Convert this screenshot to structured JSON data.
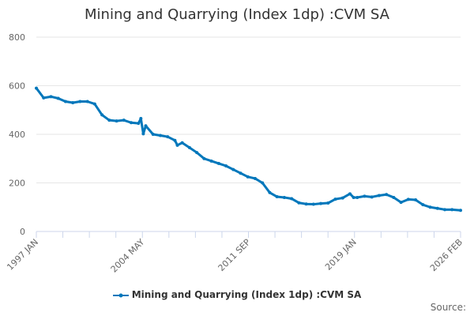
{
  "chart_data": {
    "type": "line",
    "title": "Mining and Quarrying (Index 1dp) :CVM SA",
    "xlabel": "",
    "ylabel": "",
    "ylim": [
      0,
      800
    ],
    "yticks": [
      0,
      200,
      400,
      600,
      800
    ],
    "xticks": [
      "1997 JAN",
      "2004 MAY",
      "2011 SEP",
      "2019 JAN",
      "2026 FEB"
    ],
    "xlim": [
      "1997-01",
      "2026-02"
    ],
    "grid": true,
    "legend_position": "bottom",
    "color": "#0077bb",
    "series": [
      {
        "name": "Mining and Quarrying (Index 1dp) :CVM SA",
        "points": [
          [
            "1997-01",
            590
          ],
          [
            "1997-07",
            550
          ],
          [
            "1998-01",
            555
          ],
          [
            "1998-07",
            548
          ],
          [
            "1999-01",
            535
          ],
          [
            "1999-07",
            530
          ],
          [
            "2000-01",
            535
          ],
          [
            "2000-07",
            535
          ],
          [
            "2001-01",
            525
          ],
          [
            "2001-07",
            480
          ],
          [
            "2002-01",
            458
          ],
          [
            "2002-07",
            455
          ],
          [
            "2003-01",
            458
          ],
          [
            "2003-07",
            448
          ],
          [
            "2004-01",
            445
          ],
          [
            "2004-03",
            465
          ],
          [
            "2004-05",
            402
          ],
          [
            "2004-07",
            435
          ],
          [
            "2005-01",
            400
          ],
          [
            "2005-07",
            395
          ],
          [
            "2006-01",
            390
          ],
          [
            "2006-07",
            375
          ],
          [
            "2006-09",
            355
          ],
          [
            "2007-01",
            365
          ],
          [
            "2007-07",
            345
          ],
          [
            "2008-01",
            325
          ],
          [
            "2008-07",
            300
          ],
          [
            "2009-01",
            290
          ],
          [
            "2009-07",
            280
          ],
          [
            "2010-01",
            270
          ],
          [
            "2010-07",
            255
          ],
          [
            "2011-01",
            240
          ],
          [
            "2011-07",
            225
          ],
          [
            "2012-01",
            218
          ],
          [
            "2012-07",
            200
          ],
          [
            "2013-01",
            160
          ],
          [
            "2013-07",
            143
          ],
          [
            "2014-01",
            140
          ],
          [
            "2014-07",
            135
          ],
          [
            "2015-01",
            118
          ],
          [
            "2015-07",
            113
          ],
          [
            "2016-01",
            112
          ],
          [
            "2016-07",
            115
          ],
          [
            "2017-01",
            117
          ],
          [
            "2017-07",
            133
          ],
          [
            "2018-01",
            138
          ],
          [
            "2018-07",
            155
          ],
          [
            "2018-10",
            140
          ],
          [
            "2019-01",
            140
          ],
          [
            "2019-07",
            145
          ],
          [
            "2020-01",
            142
          ],
          [
            "2020-07",
            148
          ],
          [
            "2021-01",
            152
          ],
          [
            "2021-07",
            140
          ],
          [
            "2022-01",
            120
          ],
          [
            "2022-07",
            132
          ],
          [
            "2023-01",
            130
          ],
          [
            "2023-07",
            110
          ],
          [
            "2024-01",
            100
          ],
          [
            "2024-07",
            95
          ],
          [
            "2025-01",
            90
          ],
          [
            "2025-07",
            90
          ],
          [
            "2026-02",
            87
          ]
        ]
      }
    ]
  },
  "source_label": "Source:"
}
